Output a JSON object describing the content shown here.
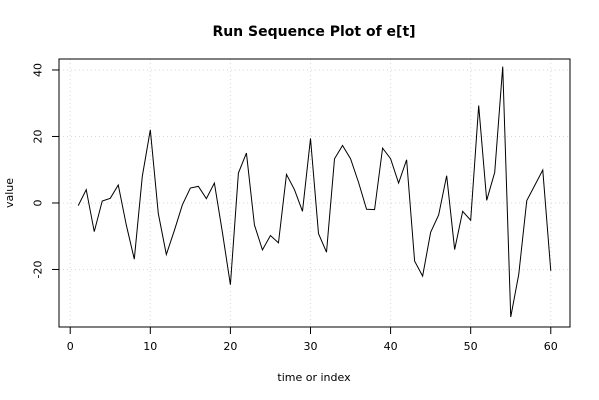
{
  "chart_data": {
    "type": "line",
    "title": "Run Sequence Plot of e[t]",
    "xlabel": "time or index",
    "ylabel": "value",
    "xlim": [
      -1.4,
      62.4
    ],
    "ylim": [
      -37.3,
      43.3
    ],
    "xticks": [
      0,
      10,
      20,
      30,
      40,
      50,
      60
    ],
    "yticks": [
      -20,
      0,
      20,
      40
    ],
    "grid": true,
    "series": [
      {
        "x": [
          1,
          2,
          3,
          4,
          5,
          6,
          7,
          8,
          9,
          10,
          11,
          12,
          13,
          14,
          15,
          16,
          17,
          18,
          19,
          20,
          21,
          22,
          23,
          24,
          25,
          26,
          27,
          28,
          29,
          30,
          31,
          32,
          33,
          34,
          35,
          36,
          37,
          38,
          39,
          40,
          41,
          42,
          43,
          44,
          45,
          46,
          47,
          48,
          49,
          50,
          51,
          52,
          53,
          54,
          55,
          56,
          57,
          58,
          59,
          60
        ],
        "values": [
          -0.8,
          4.0,
          -8.6,
          0.6,
          1.4,
          5.4,
          -6.6,
          -16.9,
          8.0,
          22.0,
          -3.2,
          -15.5,
          -8.3,
          -0.6,
          4.5,
          5.0,
          1.3,
          6.0,
          -8.8,
          -24.6,
          9.0,
          15.0,
          -6.6,
          -14.1,
          -9.8,
          -12.0,
          8.6,
          4.0,
          -2.5,
          19.4,
          -9.2,
          -14.8,
          13.3,
          17.3,
          13.3,
          6.2,
          -1.9,
          -2.0,
          16.5,
          13.3,
          6.0,
          13.0,
          -17.5,
          -22.0,
          -8.8,
          -3.6,
          8.2,
          -14.0,
          -2.5,
          -5.2,
          29.3,
          0.8,
          9.2,
          41.0,
          -34.3,
          -21.5,
          0.7,
          5.3,
          9.9,
          -20.4
        ]
      }
    ]
  }
}
